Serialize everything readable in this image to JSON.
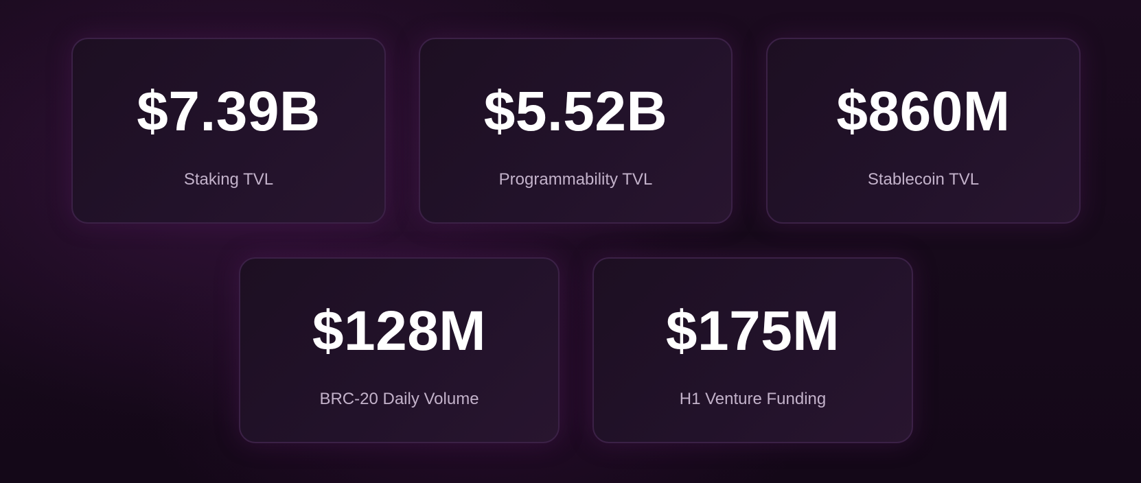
{
  "stats": [
    {
      "value": "$7.39B",
      "label": "Staking TVL"
    },
    {
      "value": "$5.52B",
      "label": "Programmability TVL"
    },
    {
      "value": "$860M",
      "label": "Stablecoin TVL"
    },
    {
      "value": "$128M",
      "label": "BRC-20 Daily Volume"
    },
    {
      "value": "$175M",
      "label": "H1 Venture Funding"
    }
  ]
}
